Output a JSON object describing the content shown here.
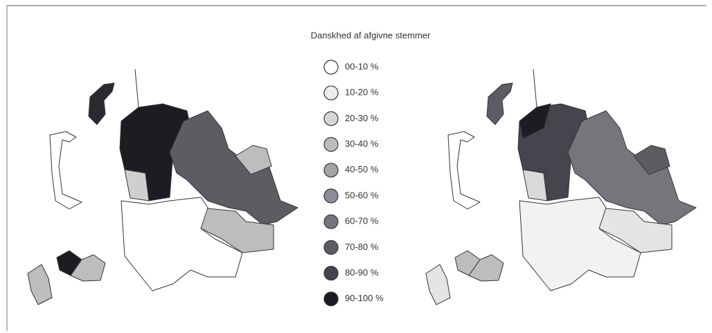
{
  "title": "Danskhed af afgivne stemmer",
  "legend": [
    {
      "label": "00-10 %",
      "color": "#ffffff"
    },
    {
      "label": "10-20 %",
      "color": "#ececec"
    },
    {
      "label": "20-30 %",
      "color": "#d6d6d6"
    },
    {
      "label": "30-40 %",
      "color": "#bdbdbd"
    },
    {
      "label": "40-50 %",
      "color": "#a3a3a3"
    },
    {
      "label": "50-60 %",
      "color": "#8e8a9a"
    },
    {
      "label": "60-70 %",
      "color": "#77757c"
    },
    {
      "label": "70-80 %",
      "color": "#5e5c63"
    },
    {
      "label": "80-90 %",
      "color": "#46444c"
    },
    {
      "label": "90-100 %",
      "color": "#1d1c22"
    }
  ]
}
